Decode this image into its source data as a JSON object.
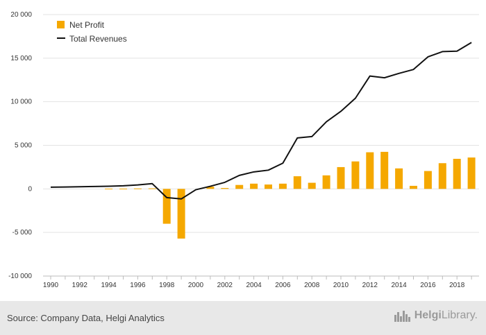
{
  "chart_data": {
    "type": "bar",
    "title": "",
    "xlabel": "",
    "ylabel": "",
    "ylim": [
      -10000,
      20000
    ],
    "yticks": [
      20000,
      15000,
      10000,
      5000,
      0,
      -5000,
      -10000
    ],
    "ytick_labels": [
      "20 000",
      "15 000",
      "10 000",
      "5 000",
      "0",
      "-5 000",
      "-10 000"
    ],
    "xtick_labels": [
      "1990",
      "1992",
      "1994",
      "1996",
      "1998",
      "2000",
      "2002",
      "2004",
      "2006",
      "2008",
      "2010",
      "2012",
      "2014",
      "2016",
      "2018"
    ],
    "x": [
      1990,
      1991,
      1992,
      1993,
      1994,
      1995,
      1996,
      1997,
      1998,
      1999,
      2000,
      2001,
      2002,
      2003,
      2004,
      2005,
      2006,
      2007,
      2008,
      2009,
      2010,
      2011,
      2012,
      2013,
      2014,
      2015,
      2016,
      2017,
      2018,
      2019
    ],
    "series": [
      {
        "name": "Net Profit",
        "kind": "bar",
        "color": "#f5a800",
        "values": [
          0,
          0,
          0,
          0,
          30,
          30,
          50,
          60,
          -4000,
          -5700,
          0,
          250,
          100,
          450,
          600,
          500,
          600,
          1450,
          700,
          1550,
          2500,
          3150,
          4200,
          4250,
          2350,
          350,
          2050,
          2950,
          3450,
          3600
        ]
      },
      {
        "name": "Total Revenues",
        "kind": "line",
        "color": "#111111",
        "values": [
          200,
          220,
          250,
          280,
          310,
          350,
          450,
          600,
          -1000,
          -1150,
          -100,
          300,
          750,
          1550,
          1950,
          2150,
          2950,
          5850,
          6000,
          7700,
          8900,
          10400,
          12950,
          12750,
          13250,
          13700,
          15150,
          15750,
          15800,
          16800
        ]
      }
    ],
    "grid": true,
    "legend": "top-left"
  },
  "footer": {
    "source": "Source: Company Data, Helgi Analytics",
    "logo_part1": "Helgi",
    "logo_part2": "Library."
  }
}
